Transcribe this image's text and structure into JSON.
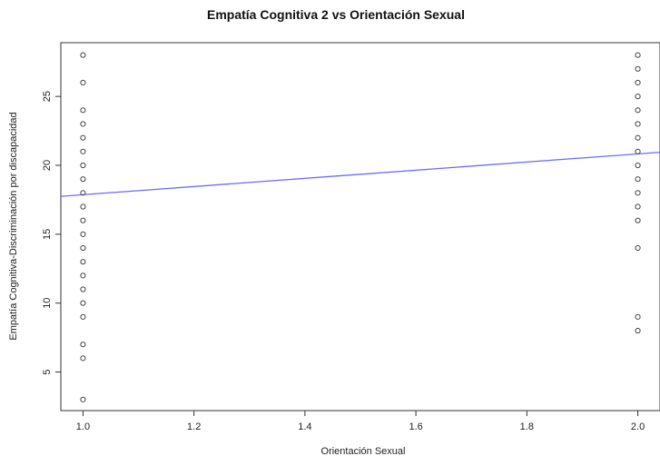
{
  "chart_data": {
    "type": "scatter",
    "title": "Empatía Cognitiva 2 vs Orientación Sexual",
    "xlabel": "Orientación Sexual",
    "ylabel": "Empatía Cognitiva-Discriminación por discapacidad",
    "xlim": [
      0.96,
      2.04
    ],
    "ylim": [
      2.2,
      28.9
    ],
    "xticks": [
      1.0,
      1.2,
      1.4,
      1.6,
      1.8,
      2.0
    ],
    "xtick_labels": [
      "1.0",
      "1.2",
      "1.4",
      "1.6",
      "1.8",
      "2.0"
    ],
    "yticks": [
      5,
      10,
      15,
      20,
      25
    ],
    "ytick_labels": [
      "5",
      "10",
      "15",
      "20",
      "25"
    ],
    "grid": false,
    "series": [
      {
        "points": [
          [
            1,
            3
          ],
          [
            1,
            6
          ],
          [
            1,
            7
          ],
          [
            1,
            9
          ],
          [
            1,
            10
          ],
          [
            1,
            11
          ],
          [
            1,
            12
          ],
          [
            1,
            13
          ],
          [
            1,
            14
          ],
          [
            1,
            15
          ],
          [
            1,
            16
          ],
          [
            1,
            17
          ],
          [
            1,
            18
          ],
          [
            1,
            19
          ],
          [
            1,
            20
          ],
          [
            1,
            21
          ],
          [
            1,
            22
          ],
          [
            1,
            23
          ],
          [
            1,
            24
          ],
          [
            1,
            26
          ],
          [
            1,
            28
          ],
          [
            2,
            8
          ],
          [
            2,
            9
          ],
          [
            2,
            14
          ],
          [
            2,
            16
          ],
          [
            2,
            17
          ],
          [
            2,
            18
          ],
          [
            2,
            19
          ],
          [
            2,
            20
          ],
          [
            2,
            21
          ],
          [
            2,
            22
          ],
          [
            2,
            23
          ],
          [
            2,
            24
          ],
          [
            2,
            25
          ],
          [
            2,
            26
          ],
          [
            2,
            27
          ],
          [
            2,
            28
          ]
        ],
        "color": "#444444"
      }
    ],
    "fit_line": {
      "x": [
        0.96,
        2.04
      ],
      "y": [
        17.75,
        20.95
      ],
      "color": "#6b6bff"
    }
  }
}
